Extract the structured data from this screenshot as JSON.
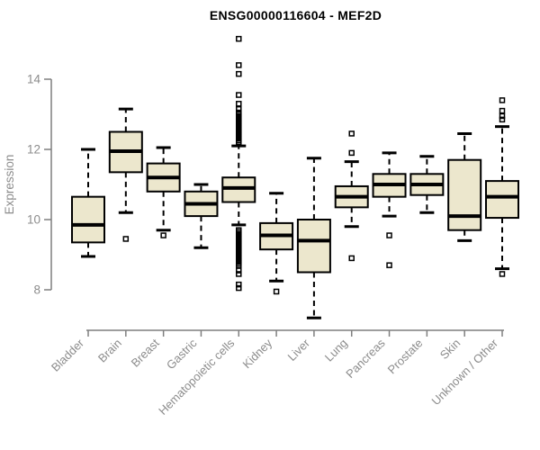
{
  "chart_data": {
    "type": "boxplot",
    "title": "ENSG00000116604 - MEF2D",
    "xlabel": "",
    "ylabel": "Expression",
    "ylim": [
      7.0,
      15.4
    ],
    "yticks": [
      8,
      10,
      12,
      14
    ],
    "grid": false,
    "legend": "none",
    "categories": [
      "Bladder",
      "Brain",
      "Breast",
      "Gastric",
      "Hematopoietic cells",
      "Kidney",
      "Liver",
      "Lung",
      "Pancreas",
      "Prostate",
      "Skin",
      "Unknown / Other"
    ],
    "series": [
      {
        "category": "Bladder",
        "whisker_low": 8.95,
        "q1": 9.35,
        "median": 9.85,
        "q3": 10.65,
        "whisker_high": 12.0,
        "outliers": []
      },
      {
        "category": "Brain",
        "whisker_low": 10.2,
        "q1": 11.35,
        "median": 11.95,
        "q3": 12.5,
        "whisker_high": 13.15,
        "outliers": [
          9.45
        ]
      },
      {
        "category": "Breast",
        "whisker_low": 9.7,
        "q1": 10.8,
        "median": 11.2,
        "q3": 11.6,
        "whisker_high": 12.05,
        "outliers": [
          9.55
        ]
      },
      {
        "category": "Gastric",
        "whisker_low": 9.2,
        "q1": 10.1,
        "median": 10.45,
        "q3": 10.8,
        "whisker_high": 11.0,
        "outliers": []
      },
      {
        "category": "Hematopoietic cells",
        "whisker_low": 9.85,
        "q1": 10.5,
        "median": 10.9,
        "q3": 11.2,
        "whisker_high": 12.1,
        "outliers": [
          15.15,
          14.4,
          14.15,
          13.55,
          13.3,
          13.15,
          13.05,
          13.0,
          12.95,
          12.9,
          12.85,
          12.8,
          12.75,
          12.7,
          12.65,
          12.6,
          12.55,
          12.5,
          12.45,
          12.4,
          12.35,
          12.3,
          12.25,
          12.2,
          9.7,
          9.65,
          9.6,
          9.55,
          9.5,
          9.45,
          9.4,
          9.35,
          9.3,
          9.25,
          9.2,
          9.15,
          9.1,
          9.05,
          9.0,
          8.95,
          8.9,
          8.85,
          8.8,
          8.75,
          8.7,
          8.55,
          8.45,
          8.15,
          8.05
        ]
      },
      {
        "category": "Kidney",
        "whisker_low": 8.25,
        "q1": 9.15,
        "median": 9.55,
        "q3": 9.9,
        "whisker_high": 10.75,
        "outliers": [
          7.95
        ]
      },
      {
        "category": "Liver",
        "whisker_low": 7.2,
        "q1": 8.5,
        "median": 9.4,
        "q3": 10.0,
        "whisker_high": 11.75,
        "outliers": []
      },
      {
        "category": "Lung",
        "whisker_low": 9.8,
        "q1": 10.35,
        "median": 10.65,
        "q3": 10.95,
        "whisker_high": 11.65,
        "outliers": [
          12.45,
          11.9,
          8.9
        ]
      },
      {
        "category": "Pancreas",
        "whisker_low": 10.1,
        "q1": 10.65,
        "median": 11.0,
        "q3": 11.3,
        "whisker_high": 11.9,
        "outliers": [
          9.55,
          8.7
        ]
      },
      {
        "category": "Prostate",
        "whisker_low": 10.2,
        "q1": 10.7,
        "median": 11.0,
        "q3": 11.3,
        "whisker_high": 11.8,
        "outliers": []
      },
      {
        "category": "Skin",
        "whisker_low": 9.4,
        "q1": 9.7,
        "median": 10.1,
        "q3": 11.7,
        "whisker_high": 12.45,
        "outliers": []
      },
      {
        "category": "Unknown / Other",
        "whisker_low": 8.6,
        "q1": 10.05,
        "median": 10.65,
        "q3": 11.1,
        "whisker_high": 12.65,
        "outliers": [
          13.4,
          13.1,
          12.95,
          12.85,
          8.45
        ]
      }
    ]
  },
  "colors": {
    "box_fill": "#ECE7CD",
    "box_stroke": "#000000",
    "median_stroke": "#000000",
    "whisker_stroke": "#000000",
    "outlier_stroke": "#000000",
    "axis_line": "#7f7f7f",
    "axis_text": "#8c8c8c",
    "title_text": "#000000",
    "background": "#ffffff"
  }
}
